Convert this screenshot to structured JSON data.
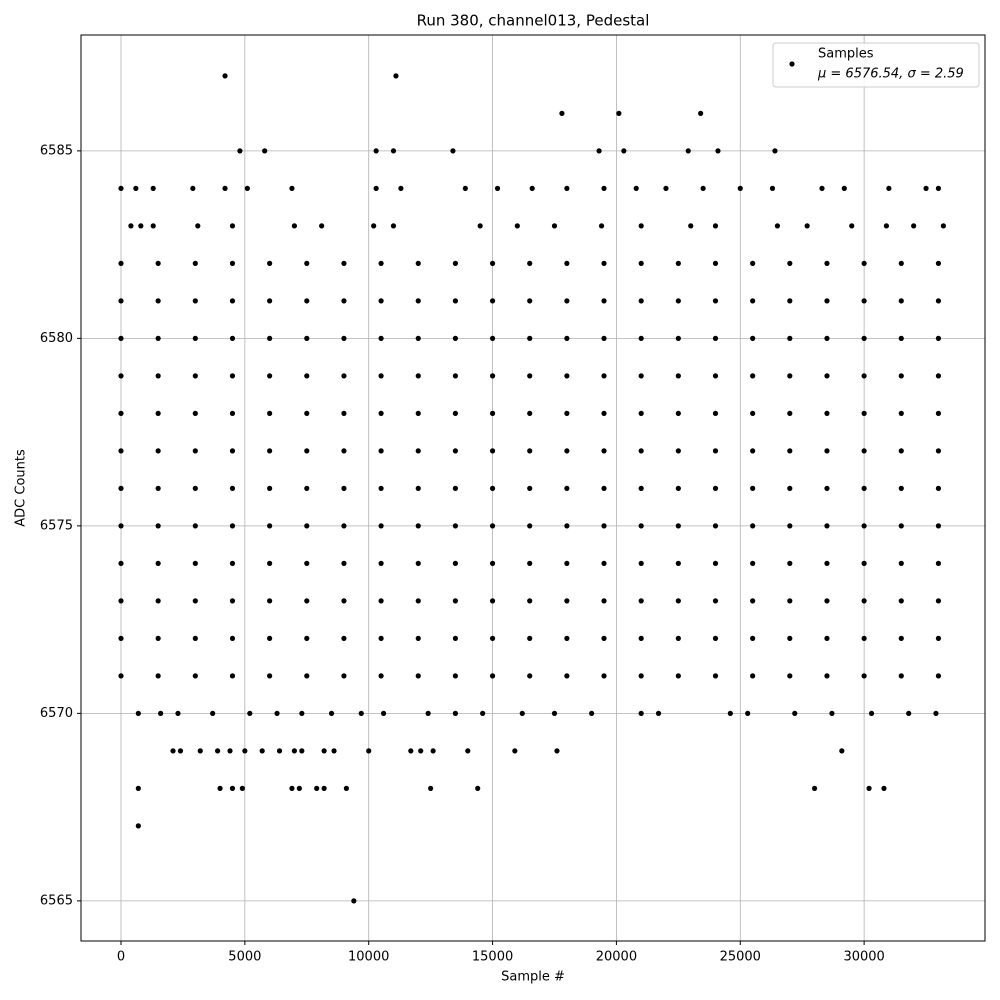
{
  "chart_data": {
    "type": "scatter",
    "title": "Run 380, channel013, Pedestal",
    "xlabel": "Sample #",
    "ylabel": "ADC Counts",
    "legend_note": "μ = 6576.54, σ = 2.59",
    "legend": "upper right",
    "grid": true,
    "xlim": [
      -1615,
      34880
    ],
    "ylim": [
      6563.93,
      6588.09
    ],
    "xticks": [
      0,
      5000,
      10000,
      15000,
      20000,
      25000,
      30000
    ],
    "yticks": [
      6565,
      6570,
      6575,
      6580,
      6585
    ],
    "x": [
      0,
      1500,
      3000,
      4500,
      6000,
      7500,
      9000,
      10500,
      12000,
      13500,
      15000,
      16500,
      18000,
      19500,
      21000,
      22500,
      24000,
      25500,
      27000,
      28500,
      30000,
      31500,
      33000,
      0,
      1500,
      3000,
      4500,
      6000,
      7500,
      9000,
      10500,
      12000,
      13500,
      15000,
      16500,
      18000,
      19500,
      21000,
      22500,
      24000,
      25500,
      27000,
      28500,
      30000,
      31500,
      33000,
      0,
      1500,
      3000,
      4500,
      6000,
      7500,
      9000,
      10500,
      12000,
      13500,
      15000,
      16500,
      18000,
      19500,
      21000,
      22500,
      24000,
      25500,
      27000,
      28500,
      30000,
      31500,
      33000,
      0,
      1500,
      3000,
      4500,
      6000,
      7500,
      9000,
      10500,
      12000,
      13500,
      15000,
      16500,
      18000,
      19500,
      21000,
      22500,
      24000,
      25500,
      27000,
      28500,
      30000,
      31500,
      33000,
      0,
      1500,
      3000,
      4500,
      6000,
      7500,
      9000,
      10500,
      12000,
      13500,
      15000,
      16500,
      18000,
      19500,
      21000,
      22500,
      24000,
      25500,
      27000,
      28500,
      30000,
      31500,
      33000,
      0,
      1500,
      3000,
      4500,
      6000,
      7500,
      9000,
      10500,
      12000,
      13500,
      15000,
      16500,
      18000,
      19500,
      21000,
      22500,
      24000,
      25500,
      27000,
      28500,
      30000,
      31500,
      33000,
      0,
      1500,
      3000,
      4500,
      6000,
      7500,
      9000,
      10500,
      12000,
      13500,
      15000,
      16500,
      18000,
      19500,
      21000,
      22500,
      24000,
      25500,
      27000,
      28500,
      30000,
      31500,
      33000,
      0,
      1500,
      3000,
      4500,
      6000,
      7500,
      9000,
      10500,
      12000,
      13500,
      15000,
      16500,
      18000,
      19500,
      21000,
      22500,
      24000,
      25500,
      27000,
      28500,
      30000,
      31500,
      33000,
      0,
      1500,
      3000,
      4500,
      6000,
      7500,
      9000,
      10500,
      12000,
      13500,
      15000,
      16500,
      18000,
      19500,
      21000,
      22500,
      24000,
      25500,
      27000,
      28500,
      30000,
      31500,
      33000,
      0,
      1500,
      3000,
      4500,
      6000,
      7500,
      9000,
      10500,
      12000,
      13500,
      15000,
      16500,
      18000,
      19500,
      21000,
      22500,
      24000,
      25500,
      27000,
      28500,
      30000,
      31500,
      33000,
      0,
      1500,
      3000,
      4500,
      6000,
      7500,
      9000,
      10500,
      12000,
      13500,
      15000,
      16500,
      18000,
      19500,
      21000,
      22500,
      24000,
      25500,
      27000,
      28500,
      30000,
      31500,
      33000,
      0,
      1500,
      3000,
      4500,
      6000,
      7500,
      9000,
      10500,
      12000,
      13500,
      15000,
      16500,
      18000,
      19500,
      21000,
      22500,
      24000,
      25500,
      27000,
      28500,
      30000,
      31500,
      33000,
      4200,
      11100,
      17800,
      20100,
      23400,
      4800,
      5800,
      10300,
      11000,
      13400,
      19300,
      20300,
      22900,
      24100,
      26400,
      0,
      600,
      1300,
      2900,
      4200,
      5100,
      6900,
      10300,
      11300,
      13900,
      15200,
      16600,
      18000,
      19500,
      20800,
      22000,
      23500,
      25000,
      26300,
      28300,
      29200,
      31000,
      32500,
      33000,
      400,
      800,
      1300,
      3100,
      4500,
      7000,
      8100,
      10200,
      11000,
      14500,
      16000,
      17500,
      19400,
      21000,
      23000,
      24000,
      26500,
      27700,
      29500,
      30900,
      32000,
      33200,
      700,
      1600,
      2300,
      3700,
      5200,
      6300,
      7300,
      8500,
      9700,
      10600,
      12400,
      13500,
      14600,
      16200,
      17500,
      19000,
      21000,
      21700,
      24600,
      25300,
      27200,
      28700,
      30300,
      31800,
      32900,
      2100,
      2400,
      3200,
      3900,
      4400,
      5000,
      5700,
      6400,
      7000,
      7300,
      8200,
      8600,
      10000,
      11700,
      12100,
      12600,
      14000,
      15900,
      17600,
      29100,
      700,
      4000,
      4500,
      4900,
      6900,
      7200,
      7900,
      8200,
      9100,
      12500,
      14400,
      28000,
      30200,
      30800,
      700,
      9400
    ],
    "series": [
      {
        "name": "Samples",
        "color": "#000000",
        "values": [
          6582,
          6582,
          6582,
          6582,
          6582,
          6582,
          6582,
          6582,
          6582,
          6582,
          6582,
          6582,
          6582,
          6582,
          6582,
          6582,
          6582,
          6582,
          6582,
          6582,
          6582,
          6582,
          6582,
          6581,
          6581,
          6581,
          6581,
          6581,
          6581,
          6581,
          6581,
          6581,
          6581,
          6581,
          6581,
          6581,
          6581,
          6581,
          6581,
          6581,
          6581,
          6581,
          6581,
          6581,
          6581,
          6581,
          6580,
          6580,
          6580,
          6580,
          6580,
          6580,
          6580,
          6580,
          6580,
          6580,
          6580,
          6580,
          6580,
          6580,
          6580,
          6580,
          6580,
          6580,
          6580,
          6580,
          6580,
          6580,
          6580,
          6579,
          6579,
          6579,
          6579,
          6579,
          6579,
          6579,
          6579,
          6579,
          6579,
          6579,
          6579,
          6579,
          6579,
          6579,
          6579,
          6579,
          6579,
          6579,
          6579,
          6579,
          6579,
          6579,
          6578,
          6578,
          6578,
          6578,
          6578,
          6578,
          6578,
          6578,
          6578,
          6578,
          6578,
          6578,
          6578,
          6578,
          6578,
          6578,
          6578,
          6578,
          6578,
          6578,
          6578,
          6578,
          6578,
          6577,
          6577,
          6577,
          6577,
          6577,
          6577,
          6577,
          6577,
          6577,
          6577,
          6577,
          6577,
          6577,
          6577,
          6577,
          6577,
          6577,
          6577,
          6577,
          6577,
          6577,
          6577,
          6577,
          6576,
          6576,
          6576,
          6576,
          6576,
          6576,
          6576,
          6576,
          6576,
          6576,
          6576,
          6576,
          6576,
          6576,
          6576,
          6576,
          6576,
          6576,
          6576,
          6576,
          6576,
          6576,
          6576,
          6575,
          6575,
          6575,
          6575,
          6575,
          6575,
          6575,
          6575,
          6575,
          6575,
          6575,
          6575,
          6575,
          6575,
          6575,
          6575,
          6575,
          6575,
          6575,
          6575,
          6575,
          6575,
          6575,
          6574,
          6574,
          6574,
          6574,
          6574,
          6574,
          6574,
          6574,
          6574,
          6574,
          6574,
          6574,
          6574,
          6574,
          6574,
          6574,
          6574,
          6574,
          6574,
          6574,
          6574,
          6574,
          6574,
          6573,
          6573,
          6573,
          6573,
          6573,
          6573,
          6573,
          6573,
          6573,
          6573,
          6573,
          6573,
          6573,
          6573,
          6573,
          6573,
          6573,
          6573,
          6573,
          6573,
          6573,
          6573,
          6573,
          6572,
          6572,
          6572,
          6572,
          6572,
          6572,
          6572,
          6572,
          6572,
          6572,
          6572,
          6572,
          6572,
          6572,
          6572,
          6572,
          6572,
          6572,
          6572,
          6572,
          6572,
          6572,
          6572,
          6571,
          6571,
          6571,
          6571,
          6571,
          6571,
          6571,
          6571,
          6571,
          6571,
          6571,
          6571,
          6571,
          6571,
          6571,
          6571,
          6571,
          6571,
          6571,
          6571,
          6571,
          6571,
          6571,
          6587,
          6587,
          6586,
          6586,
          6586,
          6585,
          6585,
          6585,
          6585,
          6585,
          6585,
          6585,
          6585,
          6585,
          6585,
          6584,
          6584,
          6584,
          6584,
          6584,
          6584,
          6584,
          6584,
          6584,
          6584,
          6584,
          6584,
          6584,
          6584,
          6584,
          6584,
          6584,
          6584,
          6584,
          6584,
          6584,
          6584,
          6584,
          6584,
          6583,
          6583,
          6583,
          6583,
          6583,
          6583,
          6583,
          6583,
          6583,
          6583,
          6583,
          6583,
          6583,
          6583,
          6583,
          6583,
          6583,
          6583,
          6583,
          6583,
          6583,
          6583,
          6570,
          6570,
          6570,
          6570,
          6570,
          6570,
          6570,
          6570,
          6570,
          6570,
          6570,
          6570,
          6570,
          6570,
          6570,
          6570,
          6570,
          6570,
          6570,
          6570,
          6570,
          6570,
          6570,
          6570,
          6570,
          6569,
          6569,
          6569,
          6569,
          6569,
          6569,
          6569,
          6569,
          6569,
          6569,
          6569,
          6569,
          6569,
          6569,
          6569,
          6569,
          6569,
          6569,
          6569,
          6569,
          6568,
          6568,
          6568,
          6568,
          6568,
          6568,
          6568,
          6568,
          6568,
          6568,
          6568,
          6568,
          6568,
          6568,
          6567,
          6565
        ]
      }
    ]
  }
}
